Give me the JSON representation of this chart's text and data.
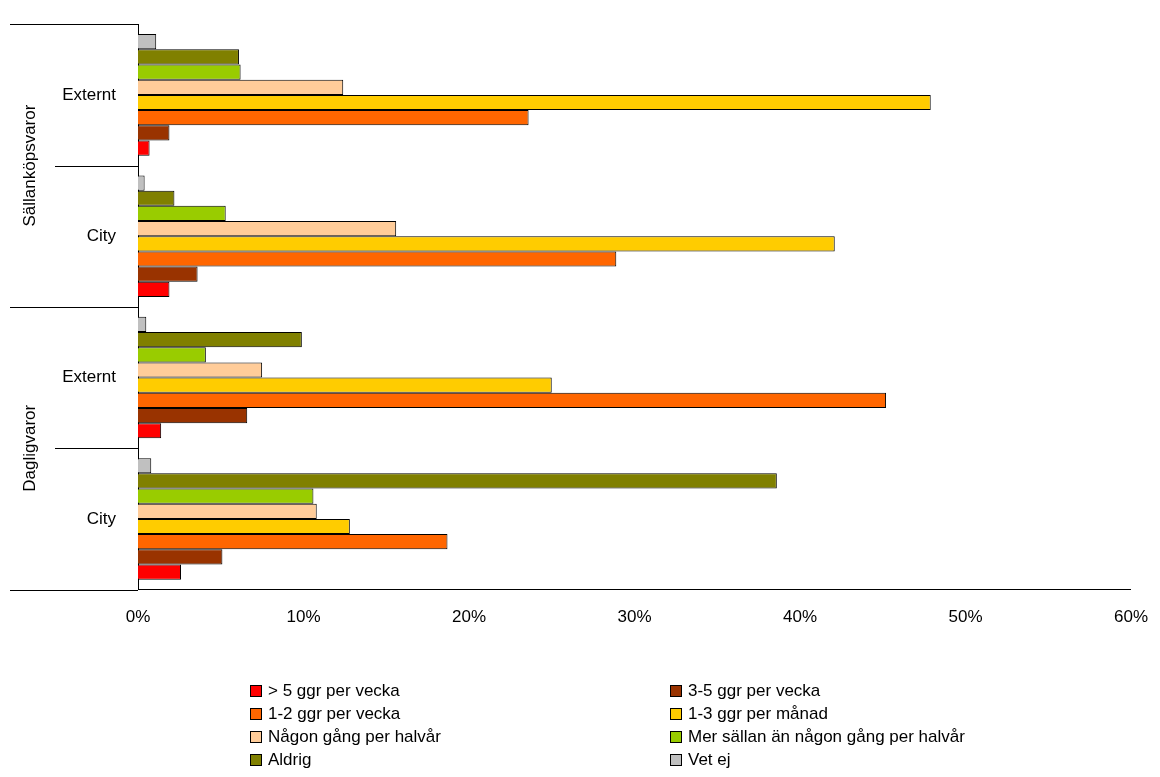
{
  "chart_data": {
    "type": "bar",
    "orientation": "horizontal",
    "categories": [
      "Externt",
      "City",
      "Externt",
      "City"
    ],
    "annotations": [
      "Sällanköpsvaror",
      "Dagligvaror"
    ],
    "series": [
      {
        "name": "> 5 ggr per vecka",
        "color": "#ff0000",
        "values": [
          0.7,
          1.9,
          1.4,
          2.6
        ]
      },
      {
        "name": "3-5 ggr per vecka",
        "color": "#993300",
        "values": [
          1.9,
          3.6,
          6.6,
          5.1
        ]
      },
      {
        "name": "1-2 ggr per vecka",
        "color": "#ff6600",
        "values": [
          23.6,
          28.9,
          45.2,
          18.7
        ]
      },
      {
        "name": "1-3 ggr per månad",
        "color": "#ffcc00",
        "values": [
          47.9,
          42.1,
          25.0,
          12.8
        ]
      },
      {
        "name": "Någon gång per halvår",
        "color": "#ffcc99",
        "values": [
          12.4,
          15.6,
          7.5,
          10.8
        ]
      },
      {
        "name": "Mer sällan än någon gång per halvår",
        "color": "#99cc00",
        "values": [
          6.2,
          5.3,
          4.1,
          10.6
        ]
      },
      {
        "name": "Aldrig",
        "color": "#808000",
        "values": [
          6.1,
          2.2,
          9.9,
          38.6
        ]
      },
      {
        "name": "Vet ej",
        "color": "#c0c0c0",
        "values": [
          1.1,
          0.4,
          0.5,
          0.8
        ]
      }
    ],
    "xlim": [
      0,
      60
    ],
    "xticks": [
      {
        "value": 0,
        "label": "0%"
      },
      {
        "value": 10,
        "label": "10%"
      },
      {
        "value": 20,
        "label": "20%"
      },
      {
        "value": 30,
        "label": "30%"
      },
      {
        "value": 40,
        "label": "40%"
      },
      {
        "value": 50,
        "label": "50%"
      },
      {
        "value": 60,
        "label": "60%"
      }
    ],
    "grid": false,
    "legend": "bottom"
  }
}
